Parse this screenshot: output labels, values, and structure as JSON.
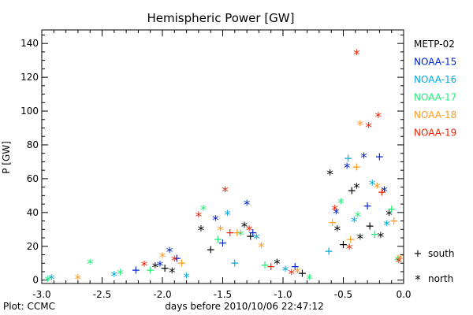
{
  "chart_data": {
    "type": "scatter",
    "title": "Hemispheric Power [GW]",
    "xlabel": "days before 2010/10/06 22:47:12",
    "ylabel": "P [GW]",
    "xlim": [
      -3.0,
      0.0
    ],
    "ylim": [
      -2,
      148
    ],
    "xticks": [
      -3.0,
      -2.5,
      -2.0,
      -1.5,
      -1.0,
      -0.5,
      0.0
    ],
    "xtick_labels": [
      "-3.0",
      "-2.5",
      "-2.0",
      "-1.5",
      "-1.0",
      "-0.5",
      "0.0"
    ],
    "yticks": [
      0,
      20,
      40,
      60,
      80,
      100,
      120,
      140
    ],
    "ytick_labels": [
      "0",
      "20",
      "40",
      "60",
      "80",
      "100",
      "120",
      "140"
    ],
    "grid": false,
    "legend_position": "right",
    "markers": {
      "south": {
        "symbol": "+",
        "label": "south"
      },
      "north": {
        "symbol": "*",
        "label": "north"
      }
    },
    "footer": "Plot: CCMC",
    "series": [
      {
        "name": "METP-02",
        "color": "#000000",
        "points": [
          {
            "x": -2.06,
            "y": 8,
            "m": "north"
          },
          {
            "x": -1.98,
            "y": 7,
            "m": "south"
          },
          {
            "x": -1.92,
            "y": 5,
            "m": "north"
          },
          {
            "x": -1.68,
            "y": 30,
            "m": "north"
          },
          {
            "x": -1.6,
            "y": 18,
            "m": "south"
          },
          {
            "x": -1.32,
            "y": 32,
            "m": "north"
          },
          {
            "x": -1.27,
            "y": 26,
            "m": "south"
          },
          {
            "x": -1.05,
            "y": 10,
            "m": "north"
          },
          {
            "x": -0.84,
            "y": 4,
            "m": "south"
          },
          {
            "x": -0.61,
            "y": 63,
            "m": "north"
          },
          {
            "x": -0.55,
            "y": 30,
            "m": "north"
          },
          {
            "x": -0.43,
            "y": 53,
            "m": "south"
          },
          {
            "x": -0.39,
            "y": 55,
            "m": "north"
          },
          {
            "x": -0.36,
            "y": 25,
            "m": "north"
          },
          {
            "x": -0.28,
            "y": 32,
            "m": "south"
          },
          {
            "x": -0.19,
            "y": 26,
            "m": "north"
          },
          {
            "x": -0.12,
            "y": 39,
            "m": "north"
          },
          {
            "x": -0.5,
            "y": 21,
            "m": "south"
          }
        ]
      },
      {
        "name": "NOAA-15",
        "color": "#0022cc",
        "points": [
          {
            "x": -2.22,
            "y": 6,
            "m": "south"
          },
          {
            "x": -1.94,
            "y": 17,
            "m": "north"
          },
          {
            "x": -1.88,
            "y": 13,
            "m": "south"
          },
          {
            "x": -1.56,
            "y": 36,
            "m": "north"
          },
          {
            "x": -1.5,
            "y": 22,
            "m": "south"
          },
          {
            "x": -1.3,
            "y": 45,
            "m": "north"
          },
          {
            "x": -1.25,
            "y": 28,
            "m": "south"
          },
          {
            "x": -0.56,
            "y": 40,
            "m": "north"
          },
          {
            "x": -0.47,
            "y": 67,
            "m": "north"
          },
          {
            "x": -0.33,
            "y": 73,
            "m": "north"
          },
          {
            "x": -0.3,
            "y": 44,
            "m": "south"
          },
          {
            "x": -0.2,
            "y": 73,
            "m": "south"
          },
          {
            "x": -0.16,
            "y": 53,
            "m": "north"
          },
          {
            "x": -2.02,
            "y": 9,
            "m": "north"
          },
          {
            "x": -0.9,
            "y": 8,
            "m": "south"
          }
        ]
      },
      {
        "name": "NOAA-16",
        "color": "#00aadd",
        "points": [
          {
            "x": -2.92,
            "y": 1,
            "m": "north"
          },
          {
            "x": -2.4,
            "y": 3,
            "m": "north"
          },
          {
            "x": -1.8,
            "y": 2,
            "m": "north"
          },
          {
            "x": -1.46,
            "y": 39,
            "m": "north"
          },
          {
            "x": -1.4,
            "y": 10,
            "m": "south"
          },
          {
            "x": -1.22,
            "y": 25,
            "m": "north"
          },
          {
            "x": -0.98,
            "y": 6,
            "m": "north"
          },
          {
            "x": -0.46,
            "y": 72,
            "m": "south"
          },
          {
            "x": -0.41,
            "y": 35,
            "m": "north"
          },
          {
            "x": -0.26,
            "y": 57,
            "m": "north"
          },
          {
            "x": -0.14,
            "y": 33,
            "m": "north"
          },
          {
            "x": -0.62,
            "y": 17,
            "m": "south"
          }
        ]
      },
      {
        "name": "NOAA-17",
        "color": "#22ee77",
        "points": [
          {
            "x": -2.95,
            "y": 0,
            "m": "north"
          },
          {
            "x": -2.6,
            "y": 10,
            "m": "north"
          },
          {
            "x": -2.35,
            "y": 4,
            "m": "north"
          },
          {
            "x": -2.1,
            "y": 6,
            "m": "south"
          },
          {
            "x": -1.66,
            "y": 42,
            "m": "north"
          },
          {
            "x": -1.54,
            "y": 24,
            "m": "south"
          },
          {
            "x": -1.35,
            "y": 27,
            "m": "north"
          },
          {
            "x": -1.15,
            "y": 9,
            "m": "south"
          },
          {
            "x": -0.78,
            "y": 1,
            "m": "north"
          },
          {
            "x": -0.52,
            "y": 46,
            "m": "north"
          },
          {
            "x": -0.38,
            "y": 38,
            "m": "north"
          },
          {
            "x": -0.24,
            "y": 27,
            "m": "south"
          },
          {
            "x": -0.1,
            "y": 42,
            "m": "south"
          },
          {
            "x": -0.05,
            "y": 12,
            "m": "north"
          }
        ]
      },
      {
        "name": "NOAA-18",
        "color": "#ff9922",
        "points": [
          {
            "x": -2.7,
            "y": 1,
            "m": "north"
          },
          {
            "x": -2.0,
            "y": 14,
            "m": "north"
          },
          {
            "x": -1.84,
            "y": 10,
            "m": "south"
          },
          {
            "x": -1.52,
            "y": 30,
            "m": "north"
          },
          {
            "x": -1.38,
            "y": 28,
            "m": "south"
          },
          {
            "x": -1.18,
            "y": 20,
            "m": "north"
          },
          {
            "x": -0.88,
            "y": 5,
            "m": "north"
          },
          {
            "x": -0.59,
            "y": 34,
            "m": "south"
          },
          {
            "x": -0.44,
            "y": 24,
            "m": "south"
          },
          {
            "x": -0.36,
            "y": 92,
            "m": "north"
          },
          {
            "x": -0.39,
            "y": 67,
            "m": "south"
          },
          {
            "x": -0.22,
            "y": 55,
            "m": "north"
          },
          {
            "x": -0.08,
            "y": 35,
            "m": "south"
          },
          {
            "x": -0.03,
            "y": 13,
            "m": "north"
          }
        ]
      },
      {
        "name": "NOAA-19",
        "color": "#ee2200",
        "points": [
          {
            "x": -2.15,
            "y": 9,
            "m": "north"
          },
          {
            "x": -1.9,
            "y": 12,
            "m": "north"
          },
          {
            "x": -1.7,
            "y": 38,
            "m": "north"
          },
          {
            "x": -1.48,
            "y": 53,
            "m": "north"
          },
          {
            "x": -1.44,
            "y": 28,
            "m": "south"
          },
          {
            "x": -1.28,
            "y": 30,
            "m": "north"
          },
          {
            "x": -1.1,
            "y": 8,
            "m": "south"
          },
          {
            "x": -0.93,
            "y": 4,
            "m": "north"
          },
          {
            "x": -0.57,
            "y": 42,
            "m": "north"
          },
          {
            "x": -0.45,
            "y": 19,
            "m": "north"
          },
          {
            "x": -0.39,
            "y": 134,
            "m": "north"
          },
          {
            "x": -0.29,
            "y": 91,
            "m": "north"
          },
          {
            "x": -0.21,
            "y": 97,
            "m": "north"
          },
          {
            "x": -0.18,
            "y": 52,
            "m": "south"
          },
          {
            "x": -0.04,
            "y": 11,
            "m": "north"
          }
        ]
      }
    ]
  }
}
